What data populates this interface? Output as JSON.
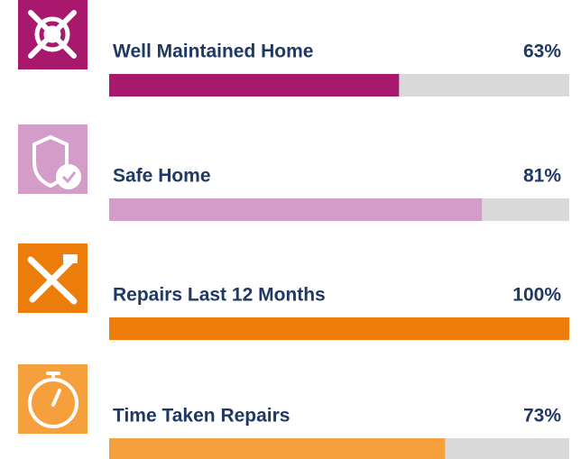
{
  "chart_data": {
    "type": "bar",
    "categories": [
      "Well Maintained Home",
      "Safe Home",
      "Repairs Last 12 Months",
      "Time Taken Repairs"
    ],
    "values": [
      63,
      81,
      100,
      73
    ],
    "value_labels": [
      "63%",
      "81%",
      "100%",
      "73%"
    ],
    "colors": [
      "#a8186c",
      "#d49dc9",
      "#ed7d0a",
      "#f5a03c"
    ],
    "track_color": "#d9d9d9",
    "xlim": [
      0,
      100
    ]
  }
}
